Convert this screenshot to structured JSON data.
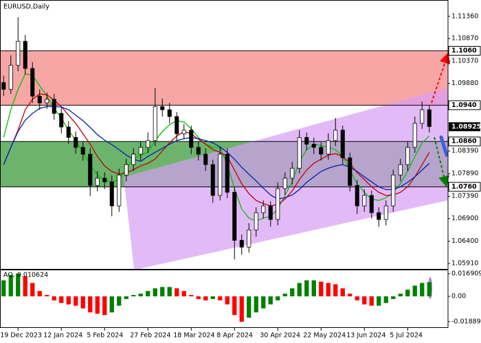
{
  "chart_data": [
    {
      "type": "candlestick",
      "title": "EURUSD,Daily",
      "categories": [
        null,
        null,
        "19 Dec 2023",
        null,
        null,
        null,
        null,
        null,
        "12 Jan 2024",
        null,
        null,
        null,
        null,
        null,
        "5 Feb 2024",
        null,
        null,
        null,
        null,
        null,
        "27 Feb 2024",
        null,
        null,
        null,
        null,
        null,
        "18 Mar 2024",
        null,
        null,
        null,
        null,
        null,
        "8 Apr 2024",
        null,
        null,
        null,
        null,
        null,
        "30 Apr 2024",
        null,
        null,
        null,
        null,
        null,
        "22 May 2024",
        null,
        null,
        null,
        null,
        null,
        "13 Jun 2024",
        null,
        null,
        null,
        null,
        null,
        "5 Jul 2024",
        null,
        null,
        null
      ],
      "open": [
        1.099,
        1.0975,
        1.1028,
        1.1081,
        1.1021,
        1.096,
        1.0945,
        1.0953,
        1.0922,
        1.0892,
        1.0869,
        1.0847,
        1.0832,
        1.0763,
        1.0779,
        1.0771,
        1.0718,
        1.0786,
        1.0809,
        1.0832,
        1.0847,
        1.0862,
        1.0937,
        1.093,
        1.0915,
        1.0877,
        1.0885,
        1.0847,
        1.0832,
        1.0809,
        1.0741,
        1.0832,
        1.0748,
        1.0642,
        1.0627,
        1.0665,
        1.0703,
        1.0718,
        1.0688,
        1.0756,
        1.0779,
        1.0801,
        1.0869,
        1.0854,
        1.0847,
        1.0832,
        1.0862,
        1.0885,
        1.0824,
        1.0763,
        1.0718,
        1.0741,
        1.0703,
        1.0688,
        1.0718,
        1.0786,
        1.0809,
        1.0847,
        1.09,
        1.093
      ],
      "high": [
        1.1005,
        1.105,
        1.1134,
        1.1095,
        1.1035,
        1.0975,
        1.0968,
        1.0965,
        1.0935,
        1.0905,
        1.0882,
        1.086,
        1.0845,
        1.0795,
        1.0792,
        1.0785,
        1.08,
        1.0822,
        1.0845,
        1.086,
        1.088,
        1.0978,
        1.0955,
        1.0945,
        1.0925,
        1.0898,
        1.0895,
        1.086,
        1.0845,
        1.082,
        1.0848,
        1.0845,
        1.076,
        1.0655,
        1.068,
        1.0715,
        1.073,
        1.0728,
        1.077,
        1.0792,
        1.0815,
        1.0885,
        1.088,
        1.0868,
        1.0858,
        1.0878,
        1.0912,
        1.0895,
        1.0835,
        1.0775,
        1.0755,
        1.0752,
        1.0715,
        1.073,
        1.0798,
        1.0822,
        1.086,
        1.0915,
        1.0948,
        1.094
      ],
      "low": [
        1.096,
        1.0965,
        1.1015,
        1.1008,
        1.0945,
        1.093,
        1.0932,
        1.0908,
        1.0878,
        1.0855,
        1.0833,
        1.0818,
        1.074,
        1.075,
        1.0755,
        1.0695,
        1.0705,
        1.0772,
        1.0795,
        1.0818,
        1.0835,
        1.085,
        1.0915,
        1.09,
        1.0862,
        1.0865,
        1.0832,
        1.0818,
        1.0795,
        1.0725,
        1.073,
        1.0735,
        1.06,
        1.061,
        1.0615,
        1.065,
        1.069,
        1.0672,
        1.0675,
        1.0742,
        1.0765,
        1.079,
        1.084,
        1.0832,
        1.0818,
        1.082,
        1.085,
        1.081,
        1.075,
        1.07,
        1.0705,
        1.069,
        1.0672,
        1.0675,
        1.0705,
        1.0772,
        1.0795,
        1.0835,
        1.0888,
        1.088
      ],
      "close": [
        1.0975,
        1.1028,
        1.1081,
        1.1021,
        1.096,
        1.0945,
        1.0953,
        1.0922,
        1.0892,
        1.0869,
        1.0847,
        1.0832,
        1.0763,
        1.0779,
        1.0771,
        1.0718,
        1.0786,
        1.0809,
        1.0832,
        1.0847,
        1.0862,
        1.0937,
        1.093,
        1.0915,
        1.0877,
        1.0885,
        1.0847,
        1.0832,
        1.0809,
        1.0741,
        1.0832,
        1.0748,
        1.0642,
        1.0627,
        1.0665,
        1.0703,
        1.0718,
        1.0688,
        1.0756,
        1.0779,
        1.0801,
        1.0869,
        1.0854,
        1.0847,
        1.0832,
        1.0862,
        1.0885,
        1.0824,
        1.0763,
        1.0718,
        1.0741,
        1.0703,
        1.0688,
        1.0718,
        1.0786,
        1.0809,
        1.0847,
        1.09,
        1.093,
        1.0893
      ],
      "up_color": "#ffffff",
      "down_color": "#000000",
      "wick_color": "#000000",
      "series": [
        {
          "color": "#00c000",
          "values": [
            1.0869,
            1.093,
            1.0975,
            1.1009,
            1.1006,
            1.0983,
            1.096,
            1.0933,
            1.0912,
            1.0885,
            1.0862,
            1.0836,
            1.0809,
            1.0786,
            1.0776,
            1.077,
            1.0776,
            1.0801,
            1.0821,
            1.083,
            1.0836,
            1.0862,
            1.0882,
            1.0897,
            1.0906,
            1.0903,
            1.0888,
            1.0869,
            1.0854,
            1.0847,
            1.0847,
            1.0809,
            1.0756,
            1.0711,
            1.0691,
            1.0685,
            1.0691,
            1.0695,
            1.0711,
            1.0741,
            1.0771,
            1.0816,
            1.0842,
            1.0854,
            1.0851,
            1.0847,
            1.0842,
            1.0827,
            1.0797,
            1.0767,
            1.0748,
            1.0733,
            1.073,
            1.0736,
            1.0748,
            1.0767,
            1.0794,
            1.0827,
            1.0857,
            1.0872
          ]
        },
        {
          "color": "#c00000",
          "values": [
            1.0809,
            1.0847,
            1.0885,
            1.093,
            1.0953,
            1.0965,
            1.0963,
            1.0951,
            1.0937,
            1.0918,
            1.09,
            1.0877,
            1.0854,
            1.0827,
            1.0806,
            1.0794,
            1.0788,
            1.0791,
            1.0798,
            1.0806,
            1.0812,
            1.0821,
            1.0839,
            1.0857,
            1.0872,
            1.0882,
            1.0877,
            1.0865,
            1.0854,
            1.0842,
            1.0836,
            1.0827,
            1.0797,
            1.0767,
            1.0745,
            1.073,
            1.0723,
            1.0718,
            1.0721,
            1.0733,
            1.0751,
            1.0776,
            1.0797,
            1.0812,
            1.0821,
            1.083,
            1.0833,
            1.0827,
            1.0812,
            1.0791,
            1.0776,
            1.076,
            1.0748,
            1.0741,
            1.0742,
            1.0748,
            1.076,
            1.0782,
            1.0809,
            1.0836
          ]
        },
        {
          "color": "#0020b0",
          "values": [
            1.0809,
            1.0847,
            1.0882,
            1.0907,
            1.0922,
            1.0933,
            1.0937,
            1.0937,
            1.0936,
            1.093,
            1.0918,
            1.0906,
            1.0891,
            1.0875,
            1.0863,
            1.0853,
            1.0842,
            1.083,
            1.0821,
            1.0816,
            1.0827,
            1.0836,
            1.0845,
            1.0854,
            1.0862,
            1.0866,
            1.0869,
            1.0866,
            1.0862,
            1.0857,
            1.0848,
            1.0836,
            1.0821,
            1.0803,
            1.0788,
            1.0773,
            1.0757,
            1.0742,
            1.0733,
            1.0736,
            1.0742,
            1.0754,
            1.077,
            1.0782,
            1.0794,
            1.0801,
            1.0806,
            1.0809,
            1.0803,
            1.0794,
            1.0782,
            1.0771,
            1.076,
            1.0754,
            1.0754,
            1.076,
            1.077,
            1.0782,
            1.0797,
            1.0812
          ]
        }
      ],
      "ylim": [
        1.0579,
        1.1172
      ],
      "yticks": [
        {
          "value": 1.0591,
          "label": "1.05910"
        },
        {
          "value": 1.064,
          "label": "1.06400"
        },
        {
          "value": 1.069,
          "label": "1.06900"
        },
        {
          "value": 1.0739,
          "label": "1.07390"
        },
        {
          "value": 1.0789,
          "label": "1.07890"
        },
        {
          "value": 1.0839,
          "label": "1.08390"
        },
        {
          "value": 1.0988,
          "label": "1.09880"
        },
        {
          "value": 1.1037,
          "label": "1.10370"
        },
        {
          "value": 1.1087,
          "label": "1.10870"
        },
        {
          "value": 1.1136,
          "label": "1.11360"
        }
      ],
      "levels": [
        {
          "value": 1.106,
          "label": "1.1060"
        },
        {
          "value": 1.094,
          "label": "1.0940"
        },
        {
          "value": 1.086,
          "label": "1.0860"
        },
        {
          "value": 1.076,
          "label": "1.0760"
        }
      ],
      "last_price": {
        "value": 1.08925,
        "label": "1.08925"
      },
      "zones": [
        {
          "from": 1.106,
          "to": 1.094,
          "color": "#f7a6a6"
        },
        {
          "from": 1.086,
          "to": 1.076,
          "color": "#6cb46c"
        }
      ]
    },
    {
      "type": "bar",
      "title": "AO, 0.010624",
      "values": [
        0.012,
        0.016,
        0.017,
        0.015,
        0.01,
        0.004,
        0.001,
        -0.003,
        -0.005,
        -0.006,
        -0.007,
        -0.009,
        -0.012,
        -0.013,
        -0.014,
        -0.012,
        -0.007,
        -0.002,
        0.001,
        0.002,
        0.004,
        0.006,
        0.007,
        0.007,
        0.006,
        0.004,
        0.001,
        -0.002,
        -0.003,
        -0.002,
        -0.003,
        -0.006,
        -0.014,
        -0.019,
        -0.016,
        -0.012,
        -0.009,
        -0.006,
        -0.003,
        0.002,
        0.006,
        0.01,
        0.012,
        0.012,
        0.011,
        0.01,
        0.009,
        0.006,
        0.002,
        -0.003,
        -0.006,
        -0.007,
        -0.007,
        -0.005,
        -0.002,
        0.002,
        0.005,
        0.008,
        0.01,
        0.010624
      ],
      "up_color": "#008000",
      "down_color": "#ff0000",
      "ylim": [
        -0.0231,
        0.0195
      ],
      "yticks": [
        0.016909,
        {
          "value": 0,
          "label": "0.00"
        },
        -0.018898
      ]
    }
  ]
}
